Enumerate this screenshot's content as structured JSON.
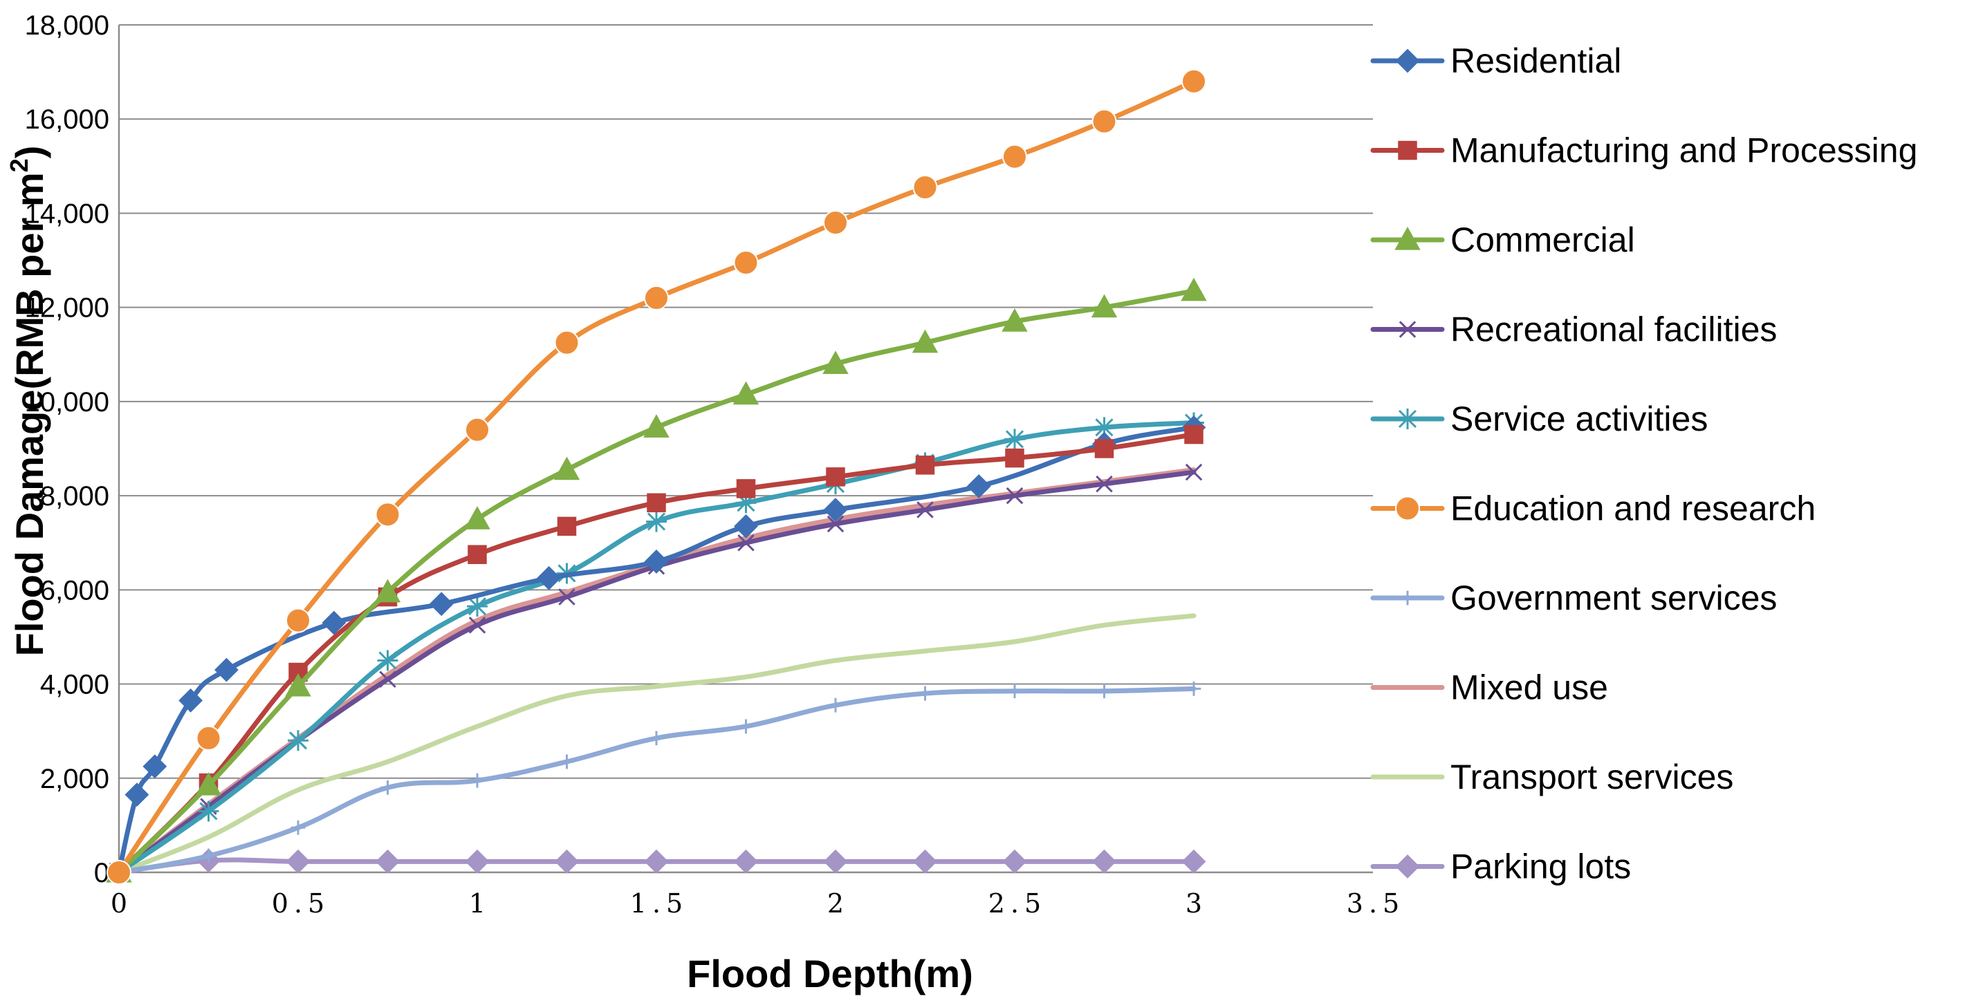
{
  "chart_data": {
    "type": "line",
    "xlabel": "Flood Depth(m)",
    "ylabel_main": "Flood Damage(RMB per m",
    "ylabel_sup": "2",
    "ylabel_end": ")",
    "xlim": [
      0,
      3.5
    ],
    "ylim": [
      0,
      18000
    ],
    "x_ticks": [
      "0",
      "0.5",
      "1",
      "1.5",
      "2",
      "2.5",
      "3",
      "3.5"
    ],
    "y_ticks": [
      "0",
      "2,000",
      "4,000",
      "6,000",
      "8,000",
      "10,000",
      "12,000",
      "14,000",
      "16,000",
      "18,000"
    ],
    "grid": "horizontal",
    "legend_position": "right",
    "series": [
      {
        "name": "Residential",
        "color": "#3E6FB4",
        "marker": "diamond",
        "x": [
          0,
          0.05,
          0.1,
          0.2,
          0.3,
          0.6,
          0.9,
          1.2,
          1.5,
          1.75,
          2.0,
          2.4,
          2.75,
          3.0
        ],
        "y": [
          0,
          1650,
          2250,
          3650,
          4300,
          5300,
          5700,
          6250,
          6600,
          7350,
          7700,
          8200,
          9100,
          9450
        ]
      },
      {
        "name": "Manufacturing and Processing",
        "color": "#B8413D",
        "marker": "square",
        "x": [
          0,
          0.25,
          0.5,
          0.75,
          1.0,
          1.25,
          1.5,
          1.75,
          2.0,
          2.25,
          2.5,
          2.75,
          3.0
        ],
        "y": [
          0,
          1900,
          4250,
          5850,
          6750,
          7350,
          7850,
          8150,
          8400,
          8650,
          8800,
          9000,
          9300
        ]
      },
      {
        "name": "Commercial",
        "color": "#7FAE45",
        "marker": "triangle",
        "x": [
          0,
          0.25,
          0.5,
          0.75,
          1.0,
          1.25,
          1.5,
          1.75,
          2.0,
          2.25,
          2.5,
          2.75,
          3.0
        ],
        "y": [
          0,
          1850,
          3950,
          5950,
          7500,
          8550,
          9450,
          10150,
          10800,
          11250,
          11700,
          12000,
          12350
        ]
      },
      {
        "name": "Recreational facilities",
        "color": "#6A4E94",
        "marker": "x",
        "x": [
          0,
          0.25,
          0.5,
          0.75,
          1.0,
          1.25,
          1.5,
          1.75,
          2.0,
          2.25,
          2.5,
          2.75,
          3.0
        ],
        "y": [
          0,
          1400,
          2800,
          4100,
          5250,
          5850,
          6500,
          7000,
          7400,
          7700,
          8000,
          8250,
          8500
        ]
      },
      {
        "name": "Service activities",
        "color": "#3E9FB4",
        "marker": "asterisk",
        "x": [
          0,
          0.25,
          0.5,
          0.75,
          1.0,
          1.25,
          1.5,
          1.75,
          2.0,
          2.25,
          2.5,
          2.75,
          3.0
        ],
        "y": [
          0,
          1300,
          2800,
          4500,
          5650,
          6350,
          7450,
          7850,
          8250,
          8700,
          9200,
          9450,
          9550
        ]
      },
      {
        "name": "Education and research",
        "color": "#EE8E3A",
        "marker": "circle",
        "x": [
          0,
          0.25,
          0.5,
          0.75,
          1.0,
          1.25,
          1.5,
          1.75,
          2.0,
          2.25,
          2.5,
          2.75,
          3.0
        ],
        "y": [
          0,
          2850,
          5350,
          7600,
          9400,
          11250,
          12200,
          12950,
          13800,
          14550,
          15200,
          15950,
          16800
        ]
      },
      {
        "name": "Government services",
        "color": "#8FA9D6",
        "marker": "plus",
        "x": [
          0,
          0.25,
          0.5,
          0.75,
          1.0,
          1.25,
          1.5,
          1.75,
          2.0,
          2.25,
          2.5,
          2.75,
          3.0
        ],
        "y": [
          0,
          350,
          950,
          1800,
          1950,
          2350,
          2850,
          3100,
          3550,
          3800,
          3850,
          3850,
          3900
        ]
      },
      {
        "name": "Mixed use",
        "color": "#D99594",
        "marker": "none",
        "x": [
          0,
          0.25,
          0.5,
          0.75,
          1.0,
          1.25,
          1.5,
          1.75,
          2.0,
          2.25,
          2.5,
          2.75,
          3.0
        ],
        "y": [
          0,
          1450,
          2850,
          4200,
          5350,
          5950,
          6550,
          7100,
          7500,
          7800,
          8050,
          8300,
          8550
        ]
      },
      {
        "name": "Transport services",
        "color": "#C3D9A0",
        "marker": "none",
        "x": [
          0,
          0.25,
          0.5,
          0.75,
          1.0,
          1.25,
          1.5,
          1.75,
          2.0,
          2.25,
          2.5,
          2.75,
          3.0
        ],
        "y": [
          0,
          750,
          1750,
          2350,
          3100,
          3750,
          3950,
          4150,
          4500,
          4700,
          4900,
          5250,
          5450
        ]
      },
      {
        "name": "Parking lots",
        "color": "#A594C6",
        "marker": "diamond",
        "x": [
          0,
          0.25,
          0.5,
          0.75,
          1.0,
          1.25,
          1.5,
          1.75,
          2.0,
          2.25,
          2.5,
          2.75,
          3.0
        ],
        "y": [
          0,
          250,
          230,
          230,
          230,
          230,
          230,
          230,
          230,
          230,
          230,
          230,
          230
        ]
      }
    ]
  }
}
